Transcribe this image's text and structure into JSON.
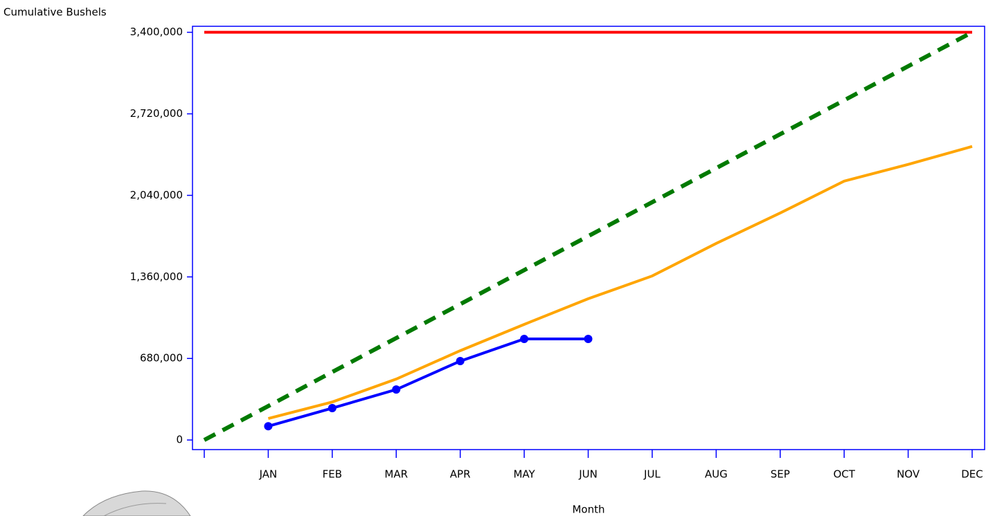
{
  "chart_data": {
    "type": "line",
    "y_label": "Cumulative Bushels",
    "x_label": "Month",
    "categories": [
      null,
      "JAN",
      "FEB",
      "MAR",
      "APR",
      "MAY",
      "JUN",
      "JUL",
      "AUG",
      "SEP",
      "OCT",
      "NOV",
      "DEC"
    ],
    "ylim": [
      -80000,
      3450000
    ],
    "yticks": [
      0,
      {
        "value": 680000,
        "label": "680,000"
      },
      {
        "value": 1360000,
        "label": "1,360,000"
      },
      {
        "value": 2040000,
        "label": "2,040,000"
      },
      {
        "value": 2720000,
        "label": "2,720,000"
      },
      {
        "value": 3400000,
        "label": "3,400,000"
      }
    ],
    "grid": false,
    "series": [
      {
        "color": "#ff0000",
        "dash": false,
        "markers": false,
        "values": [
          3400000,
          3400000,
          3400000,
          3400000,
          3400000,
          3400000,
          3400000,
          3400000,
          3400000,
          3400000,
          3400000,
          3400000,
          3400000
        ]
      },
      {
        "color": "#007a00",
        "dash": true,
        "markers": false,
        "values": [
          0,
          283000,
          567000,
          850000,
          1133000,
          1417000,
          1700000,
          1983000,
          2267000,
          2550000,
          2833000,
          3117000,
          3400000
        ]
      },
      {
        "color": "#ffa500",
        "dash": false,
        "markers": false,
        "values": [
          null,
          179000,
          317000,
          508000,
          745000,
          964000,
          1178000,
          1368000,
          1639000,
          1893000,
          2159000,
          2298000,
          2448000
        ]
      },
      {
        "color": "#0000ff",
        "dash": false,
        "markers": true,
        "values": [
          null,
          115000,
          266000,
          421000,
          658000,
          843000,
          843000,
          null,
          null,
          null,
          null,
          null,
          null
        ]
      }
    ]
  }
}
